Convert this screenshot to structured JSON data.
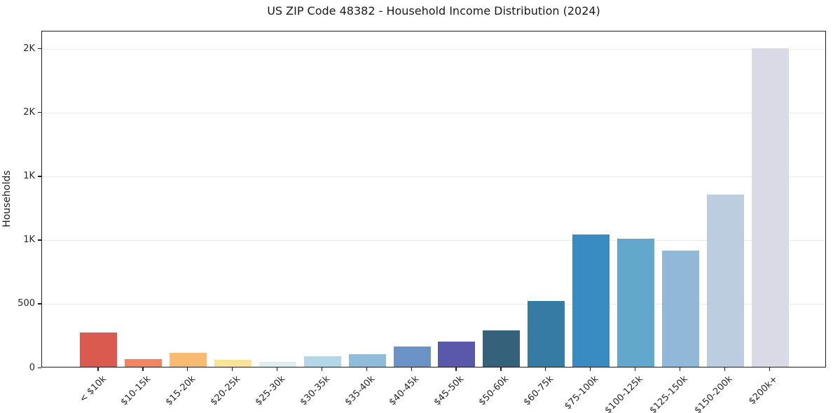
{
  "title": "US ZIP Code 48382 - Household Income Distribution (2024)",
  "chart_data": {
    "type": "bar",
    "title": "US ZIP Code 48382 - Household Income Distribution (2024)",
    "xlabel": "",
    "ylabel": "Households",
    "categories": [
      "< $10k",
      "$10-15k",
      "$15-20k",
      "$20-25k",
      "$25-30k",
      "$30-35k",
      "$35-40k",
      "$40-45k",
      "$45-50k",
      "$50-60k",
      "$60-75k",
      "$75-100k",
      "$100-125k",
      "$125-150k",
      "$150-200k",
      "$200k+"
    ],
    "values": [
      270,
      60,
      110,
      55,
      40,
      85,
      100,
      160,
      200,
      285,
      515,
      1035,
      1005,
      910,
      1350,
      2500
    ],
    "bar_colors": [
      "#db5a50",
      "#ef8561",
      "#f9ba72",
      "#fae39b",
      "#dfeff0",
      "#b3d6e8",
      "#8fbcdb",
      "#6b93c8",
      "#5a58ab",
      "#35627a",
      "#357ba3",
      "#388cc2",
      "#62a7cc",
      "#92b8d8",
      "#bccddf",
      "#d9dae6"
    ],
    "ylim": [
      0,
      2640
    ],
    "yticks": {
      "values": [
        0,
        500,
        1000,
        1500,
        2000,
        2500
      ],
      "labels": [
        "0",
        "500",
        "1K",
        "1K",
        "2K",
        "2K"
      ]
    },
    "grid": "horizontal",
    "legend": "none"
  },
  "colors": {
    "background": "#ffffff",
    "spine": "#1f1f1f",
    "gridline": "#e9e9ec",
    "text": "#262626"
  }
}
